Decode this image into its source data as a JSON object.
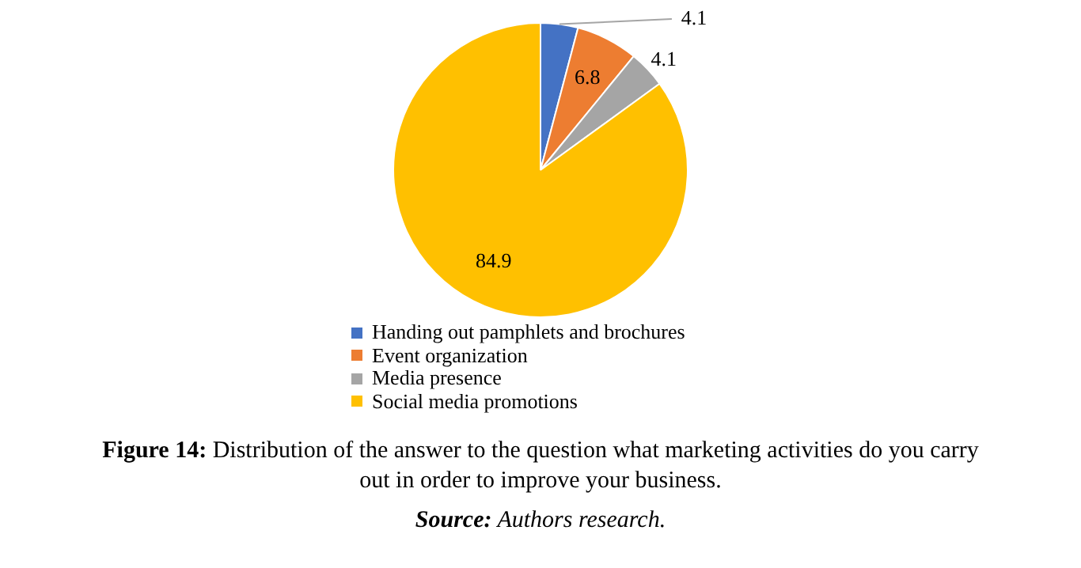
{
  "chart_data": {
    "type": "pie",
    "categories": [
      "Handing out pamphlets and brochures",
      "Event organization",
      "Media presence",
      "Social media promotions"
    ],
    "values": [
      4.1,
      6.8,
      4.1,
      84.9
    ],
    "colors": [
      "#4472c4",
      "#ed7d31",
      "#a5a5a5",
      "#ffc000"
    ],
    "data_labels": true,
    "legend": "bottom",
    "annotations": [
      "Figure 14: Distribution of the answer to the question what marketing activities do you carry out in order to improve your business.",
      "Source: Authors research."
    ]
  }
}
